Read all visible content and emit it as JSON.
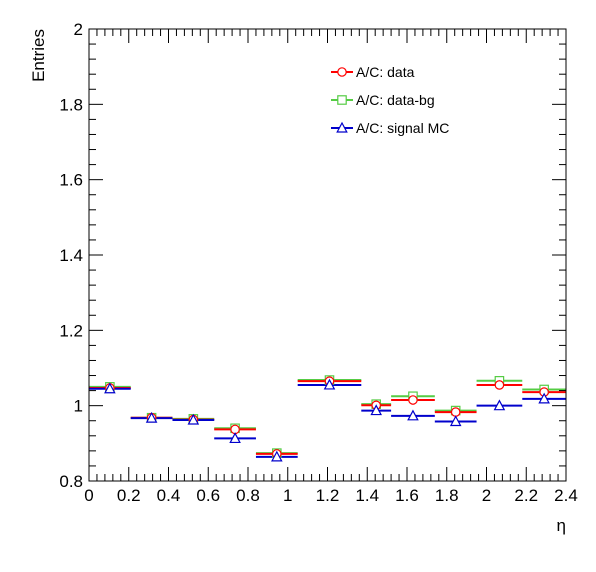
{
  "chart_data": {
    "type": "scatter",
    "xlabel": "η",
    "ylabel": "Entries",
    "xlim": [
      0,
      2.4
    ],
    "ylim": [
      0.8,
      2.0
    ],
    "grid": false,
    "legend_position": "top-right",
    "x_ticks": [
      "0",
      "0.2",
      "0.4",
      "0.6",
      "0.8",
      "1",
      "1.2",
      "1.4",
      "1.6",
      "1.8",
      "2",
      "2.2",
      "2.4"
    ],
    "y_ticks": [
      "0.8",
      "1",
      "1.2",
      "1.4",
      "1.6",
      "1.8",
      "2"
    ],
    "bins": [
      [
        0.0,
        0.21
      ],
      [
        0.21,
        0.42
      ],
      [
        0.42,
        0.63
      ],
      [
        0.63,
        0.84
      ],
      [
        0.84,
        1.05
      ],
      [
        1.05,
        1.37
      ],
      [
        1.37,
        1.52
      ],
      [
        1.52,
        1.74
      ],
      [
        1.74,
        1.95
      ],
      [
        1.95,
        2.18
      ],
      [
        2.18,
        2.4
      ]
    ],
    "series": [
      {
        "name": "A/C: data",
        "color": "#ff0000",
        "marker": "circle",
        "x": [
          0.105,
          0.315,
          0.525,
          0.735,
          0.945,
          1.21,
          1.445,
          1.63,
          1.845,
          2.065,
          2.29
        ],
        "values": [
          1.047,
          0.968,
          0.963,
          0.937,
          0.872,
          1.065,
          1.001,
          1.015,
          0.983,
          1.055,
          1.036
        ]
      },
      {
        "name": "A/C: data-bg",
        "color": "#55cc44",
        "marker": "square",
        "x": [
          0.105,
          0.315,
          0.525,
          0.735,
          0.945,
          1.21,
          1.445,
          1.63,
          1.845,
          2.065,
          2.29
        ],
        "values": [
          1.05,
          0.968,
          0.965,
          0.94,
          0.874,
          1.068,
          1.004,
          1.025,
          0.987,
          1.066,
          1.043
        ]
      },
      {
        "name": "A/C: signal MC",
        "color": "#0000cc",
        "marker": "triangle",
        "x": [
          0.105,
          0.315,
          0.525,
          0.735,
          0.945,
          1.21,
          1.445,
          1.63,
          1.845,
          2.065,
          2.29
        ],
        "values": [
          1.045,
          0.967,
          0.962,
          0.913,
          0.864,
          1.055,
          0.987,
          0.973,
          0.958,
          1.0,
          1.018
        ]
      }
    ]
  }
}
